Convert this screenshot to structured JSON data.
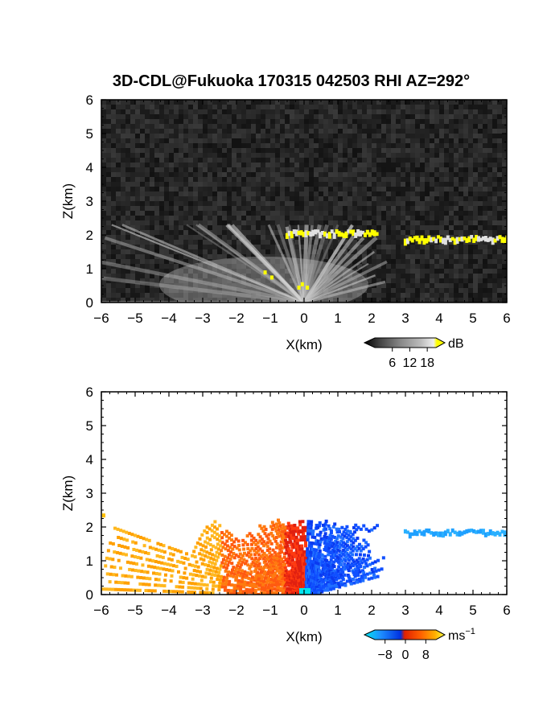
{
  "title": "3D-CDL@Fukuoka 170315 042503 RHI AZ=292°",
  "chart_data": [
    {
      "type": "heatmap",
      "panel": "snr",
      "xlabel": "X(km)",
      "ylabel": "Z(km)",
      "xlim": [
        -6,
        6
      ],
      "ylim": [
        0,
        6
      ],
      "xticks": [
        "-6",
        "-5",
        "-4",
        "-3",
        "-2",
        "-1",
        "0",
        "1",
        "2",
        "3",
        "4",
        "5",
        "6"
      ],
      "yticks": [
        "0",
        "1",
        "2",
        "3",
        "4",
        "5",
        "6"
      ],
      "colorbar": {
        "unit": "dB",
        "ticks": [
          "6",
          "12",
          "18"
        ],
        "tick_values": [
          6,
          12,
          18
        ],
        "range": [
          0,
          21
        ],
        "colors": [
          "#000000",
          "#444444",
          "#888888",
          "#bbbbbb",
          "#eeeeee",
          "#ffff00"
        ]
      },
      "background_color": "#1e1e1e",
      "features": [
        {
          "name": "cloud layer",
          "x_range": [
            -0.6,
            2.2
          ],
          "z": 2.0,
          "color": "#ffff00"
        },
        {
          "name": "cloud layer",
          "x_range": [
            2.9,
            6.0
          ],
          "z": 1.85,
          "color": "#ffff00"
        },
        {
          "name": "boundary layer returns",
          "x_range": [
            -6.0,
            2.0
          ],
          "z_range": [
            0,
            1.2
          ],
          "color": "#bbbbbb"
        }
      ]
    },
    {
      "type": "heatmap",
      "panel": "doppler_velocity",
      "xlabel": "X(km)",
      "ylabel": "Z(km)",
      "xlim": [
        -6,
        6
      ],
      "ylim": [
        0,
        6
      ],
      "xticks": [
        "-6",
        "-5",
        "-4",
        "-3",
        "-2",
        "-1",
        "0",
        "1",
        "2",
        "3",
        "4",
        "5",
        "6"
      ],
      "yticks": [
        "0",
        "1",
        "2",
        "3",
        "4",
        "5",
        "6"
      ],
      "colorbar": {
        "unit": "ms",
        "unit_superscript": "−1",
        "ticks": [
          "−8",
          "0",
          "8"
        ],
        "tick_values": [
          -8,
          0,
          8
        ],
        "range": [
          -12,
          12
        ],
        "colors": [
          "#00e5ee",
          "#1e90ff",
          "#0030e0",
          "#e02000",
          "#ff6000",
          "#ffb000",
          "#ffff40"
        ]
      },
      "features": [
        {
          "name": "negative velocity region",
          "x_range": [
            0.0,
            2.3
          ],
          "z_range": [
            0,
            2.2
          ],
          "velocity": -6,
          "color": "#1060ff"
        },
        {
          "name": "positive velocity region",
          "x_range": [
            -3.5,
            0.0
          ],
          "z_range": [
            0,
            2.2
          ],
          "velocity": 5,
          "color": "#ff5010"
        },
        {
          "name": "low-level positive returns",
          "x_range": [
            -6.0,
            -3.5
          ],
          "z_range": [
            0.3,
            1.0
          ],
          "velocity": 9,
          "color": "#ffb000"
        },
        {
          "name": "cloud layer",
          "x_range": [
            2.9,
            6.0
          ],
          "z": 1.85,
          "velocity": -9,
          "color": "#1ea0ff"
        }
      ]
    }
  ]
}
